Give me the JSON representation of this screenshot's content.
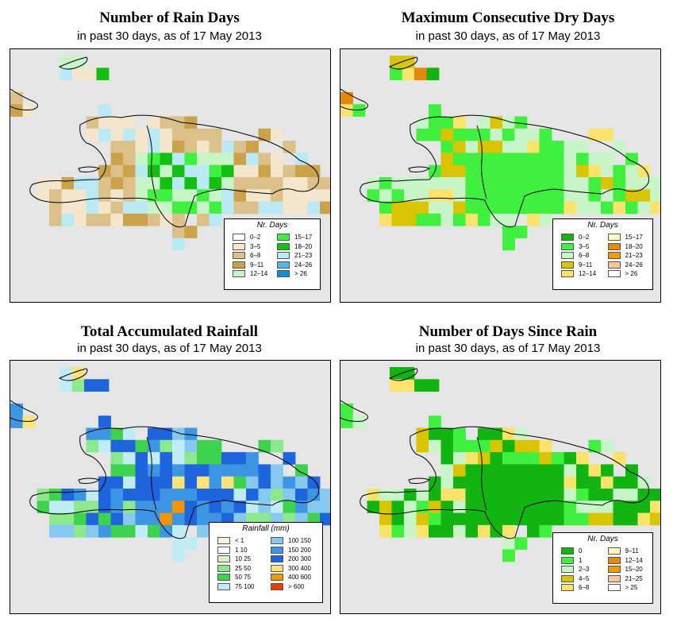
{
  "panels": {
    "rain_days": {
      "title": "Number of Rain Days",
      "subtitle": "in past 30 days, as of  17 May 2013",
      "legend": {
        "title": "Nr. Days",
        "items": [
          {
            "label": "0–2",
            "color": "#ffffff"
          },
          {
            "label": "3–5",
            "color": "#f4e6cc"
          },
          {
            "label": "6–8",
            "color": "#dcc08a"
          },
          {
            "label": "9–11",
            "color": "#c9a24a"
          },
          {
            "label": "12–14",
            "color": "#c8f5c8"
          },
          {
            "label": "15–17",
            "color": "#3ff03f"
          },
          {
            "label": "18–20",
            "color": "#12bf12"
          },
          {
            "label": "21–23",
            "color": "#b9e9f5"
          },
          {
            "label": "24–26",
            "color": "#55b4ea"
          },
          {
            "label": "> 26",
            "color": "#118ed2"
          }
        ]
      }
    },
    "dry_days": {
      "title": "Maximum Consecutive Dry Days",
      "subtitle": "in past 30 days, as of  17 May 2013",
      "legend": {
        "title": "Nr. Days",
        "items": [
          {
            "label": "0–2",
            "color": "#12b412"
          },
          {
            "label": "3–5",
            "color": "#3ff03f"
          },
          {
            "label": "6–8",
            "color": "#c8f5c8"
          },
          {
            "label": "9–11",
            "color": "#d8c400"
          },
          {
            "label": "12–14",
            "color": "#fae36a"
          },
          {
            "label": "15–17",
            "color": "#fdfbc2"
          },
          {
            "label": "18–20",
            "color": "#e58a00"
          },
          {
            "label": "21–23",
            "color": "#f09c00"
          },
          {
            "label": "24–26",
            "color": "#f8c59a"
          },
          {
            "label": "> 26",
            "color": "#ffffff"
          }
        ]
      }
    },
    "rainfall": {
      "title": "Total Accumulated Rainfall",
      "subtitle": "in past 30 days, as of  17 May 2013",
      "legend": {
        "title": "Rainfall (mm)",
        "items": [
          {
            "label": "< 1",
            "color": "#fbf3df"
          },
          {
            "label": "1    10",
            "color": "#ffffff"
          },
          {
            "label": "10    25",
            "color": "#d2f5c0"
          },
          {
            "label": "25    50",
            "color": "#8ce88c"
          },
          {
            "label": "50    75",
            "color": "#3fd24f"
          },
          {
            "label": "75  100",
            "color": "#c0ecf6"
          },
          {
            "label": "100  150",
            "color": "#86c8f0"
          },
          {
            "label": "150  200",
            "color": "#3c96e4"
          },
          {
            "label": "200  300",
            "color": "#1e64dc"
          },
          {
            "label": "300  400",
            "color": "#fae37a"
          },
          {
            "label": "400  600",
            "color": "#f59600"
          },
          {
            "label": "> 600",
            "color": "#f03c00"
          }
        ]
      }
    },
    "days_since": {
      "title": "Number of Days Since Rain",
      "subtitle": "in past 30 days, as of  17 May 2013",
      "legend": {
        "title": "Nr. Days",
        "items": [
          {
            "label": "0",
            "color": "#12b412"
          },
          {
            "label": "1",
            "color": "#3ff03f"
          },
          {
            "label": "2–3",
            "color": "#c8f5c8"
          },
          {
            "label": "4–5",
            "color": "#d8c400"
          },
          {
            "label": "6–8",
            "color": "#fae36a"
          },
          {
            "label": "9–11",
            "color": "#fdfbc2"
          },
          {
            "label": "12–14",
            "color": "#e58a00"
          },
          {
            "label": "15–20",
            "color": "#f09c00"
          },
          {
            "label": "21–25",
            "color": "#f8c59a"
          },
          {
            "label": "> 25",
            "color": "#ffffff"
          }
        ]
      }
    }
  }
}
